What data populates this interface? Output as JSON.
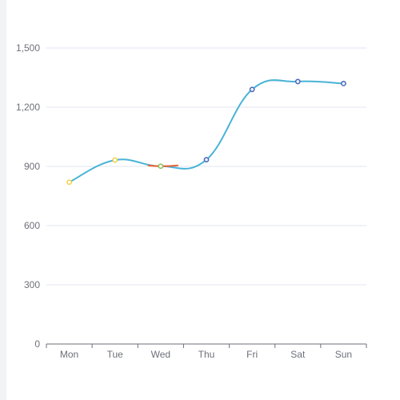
{
  "colors": {
    "line_default": "#48b3d6",
    "line_segment_wed": "#e8623a",
    "point_low": "#f2d04a",
    "point_mid": "#8cc35a",
    "point_high": "#4a6ac0",
    "grid": "#e0e6f1",
    "axis": "#6e7079"
  },
  "chart_data": {
    "type": "line",
    "title": "",
    "xlabel": "",
    "ylabel": "",
    "categories": [
      "Mon",
      "Tue",
      "Wed",
      "Thu",
      "Fri",
      "Sat",
      "Sun"
    ],
    "series": [
      {
        "values": [
          820,
          932,
          901,
          934,
          1290,
          1330,
          1320
        ],
        "smooth": true
      }
    ],
    "ylim": [
      0,
      1500
    ],
    "yticks": [
      0,
      300,
      600,
      900,
      1200,
      1500
    ],
    "ytick_labels": [
      "0",
      "300",
      "600",
      "900",
      "1,200",
      "1,500"
    ],
    "grid": true,
    "visual_map": [
      {
        "lte": 900,
        "color": "#f2d04a"
      },
      {
        "gt": 900,
        "lte": 901,
        "color": "#8cc35a"
      },
      {
        "gt": 901,
        "color": "#4a6ac0"
      }
    ]
  }
}
